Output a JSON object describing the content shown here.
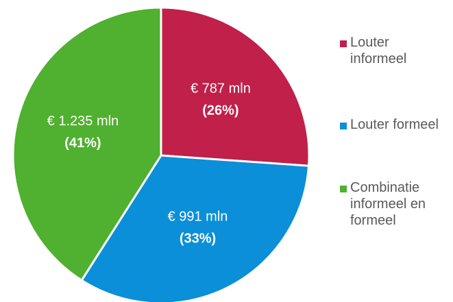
{
  "chart_data": {
    "type": "pie",
    "categories": [
      "Louter informeel",
      "Louter formeel",
      "Combinatie informeel en formeel"
    ],
    "values": [
      787,
      991,
      1235
    ],
    "value_labels": [
      "€ 787 mln",
      "€ 991 mln",
      "€ 1.235 mln"
    ],
    "percentages": [
      26,
      33,
      41
    ],
    "percentage_labels": [
      "(26%)",
      "(33%)",
      "(41%)"
    ],
    "colors": [
      "#c0204a",
      "#0a8fd8",
      "#50b02f"
    ],
    "legend": "right"
  }
}
